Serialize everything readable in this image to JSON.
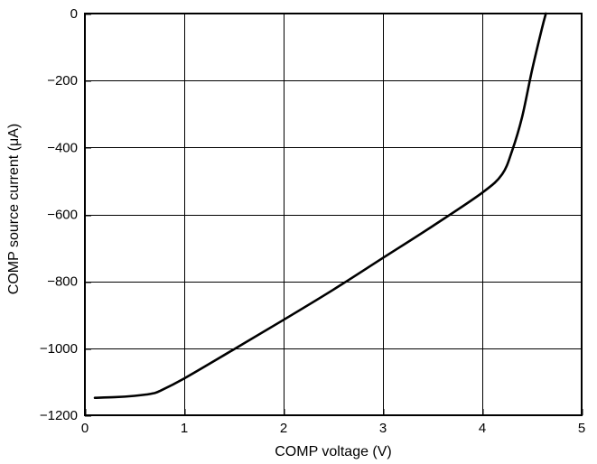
{
  "chart_data": {
    "type": "line",
    "title": "",
    "xlabel": "COMP  voltage  (V)",
    "ylabel": "COMP  source  current  (μA)",
    "xlim": [
      0,
      5
    ],
    "ylim": [
      -1200,
      0
    ],
    "xticks": [
      0,
      1,
      2,
      3,
      4,
      5
    ],
    "yticks": [
      0,
      -200,
      -400,
      -600,
      -800,
      -1000,
      -1200
    ],
    "xtick_labels": [
      "0",
      "1",
      "2",
      "3",
      "4",
      "5"
    ],
    "ytick_labels": [
      "0",
      "−200",
      "−400",
      "−600",
      "−800",
      "−1000",
      "−1200"
    ],
    "grid": true,
    "legend": "none",
    "line_color": "#000000",
    "series": [
      {
        "x": [
          0.1,
          0.3,
          0.5,
          0.62,
          0.68,
          0.75,
          1.0,
          1.5,
          2.0,
          2.5,
          3.0,
          3.5,
          4.0,
          4.2,
          4.3,
          4.4,
          4.5,
          4.6,
          4.64
        ],
        "y": [
          -1148,
          -1146,
          -1142,
          -1138,
          -1135,
          -1128,
          -1090,
          -1003,
          -915,
          -825,
          -730,
          -635,
          -535,
          -480,
          -410,
          -310,
          -170,
          -45,
          0
        ]
      }
    ]
  }
}
